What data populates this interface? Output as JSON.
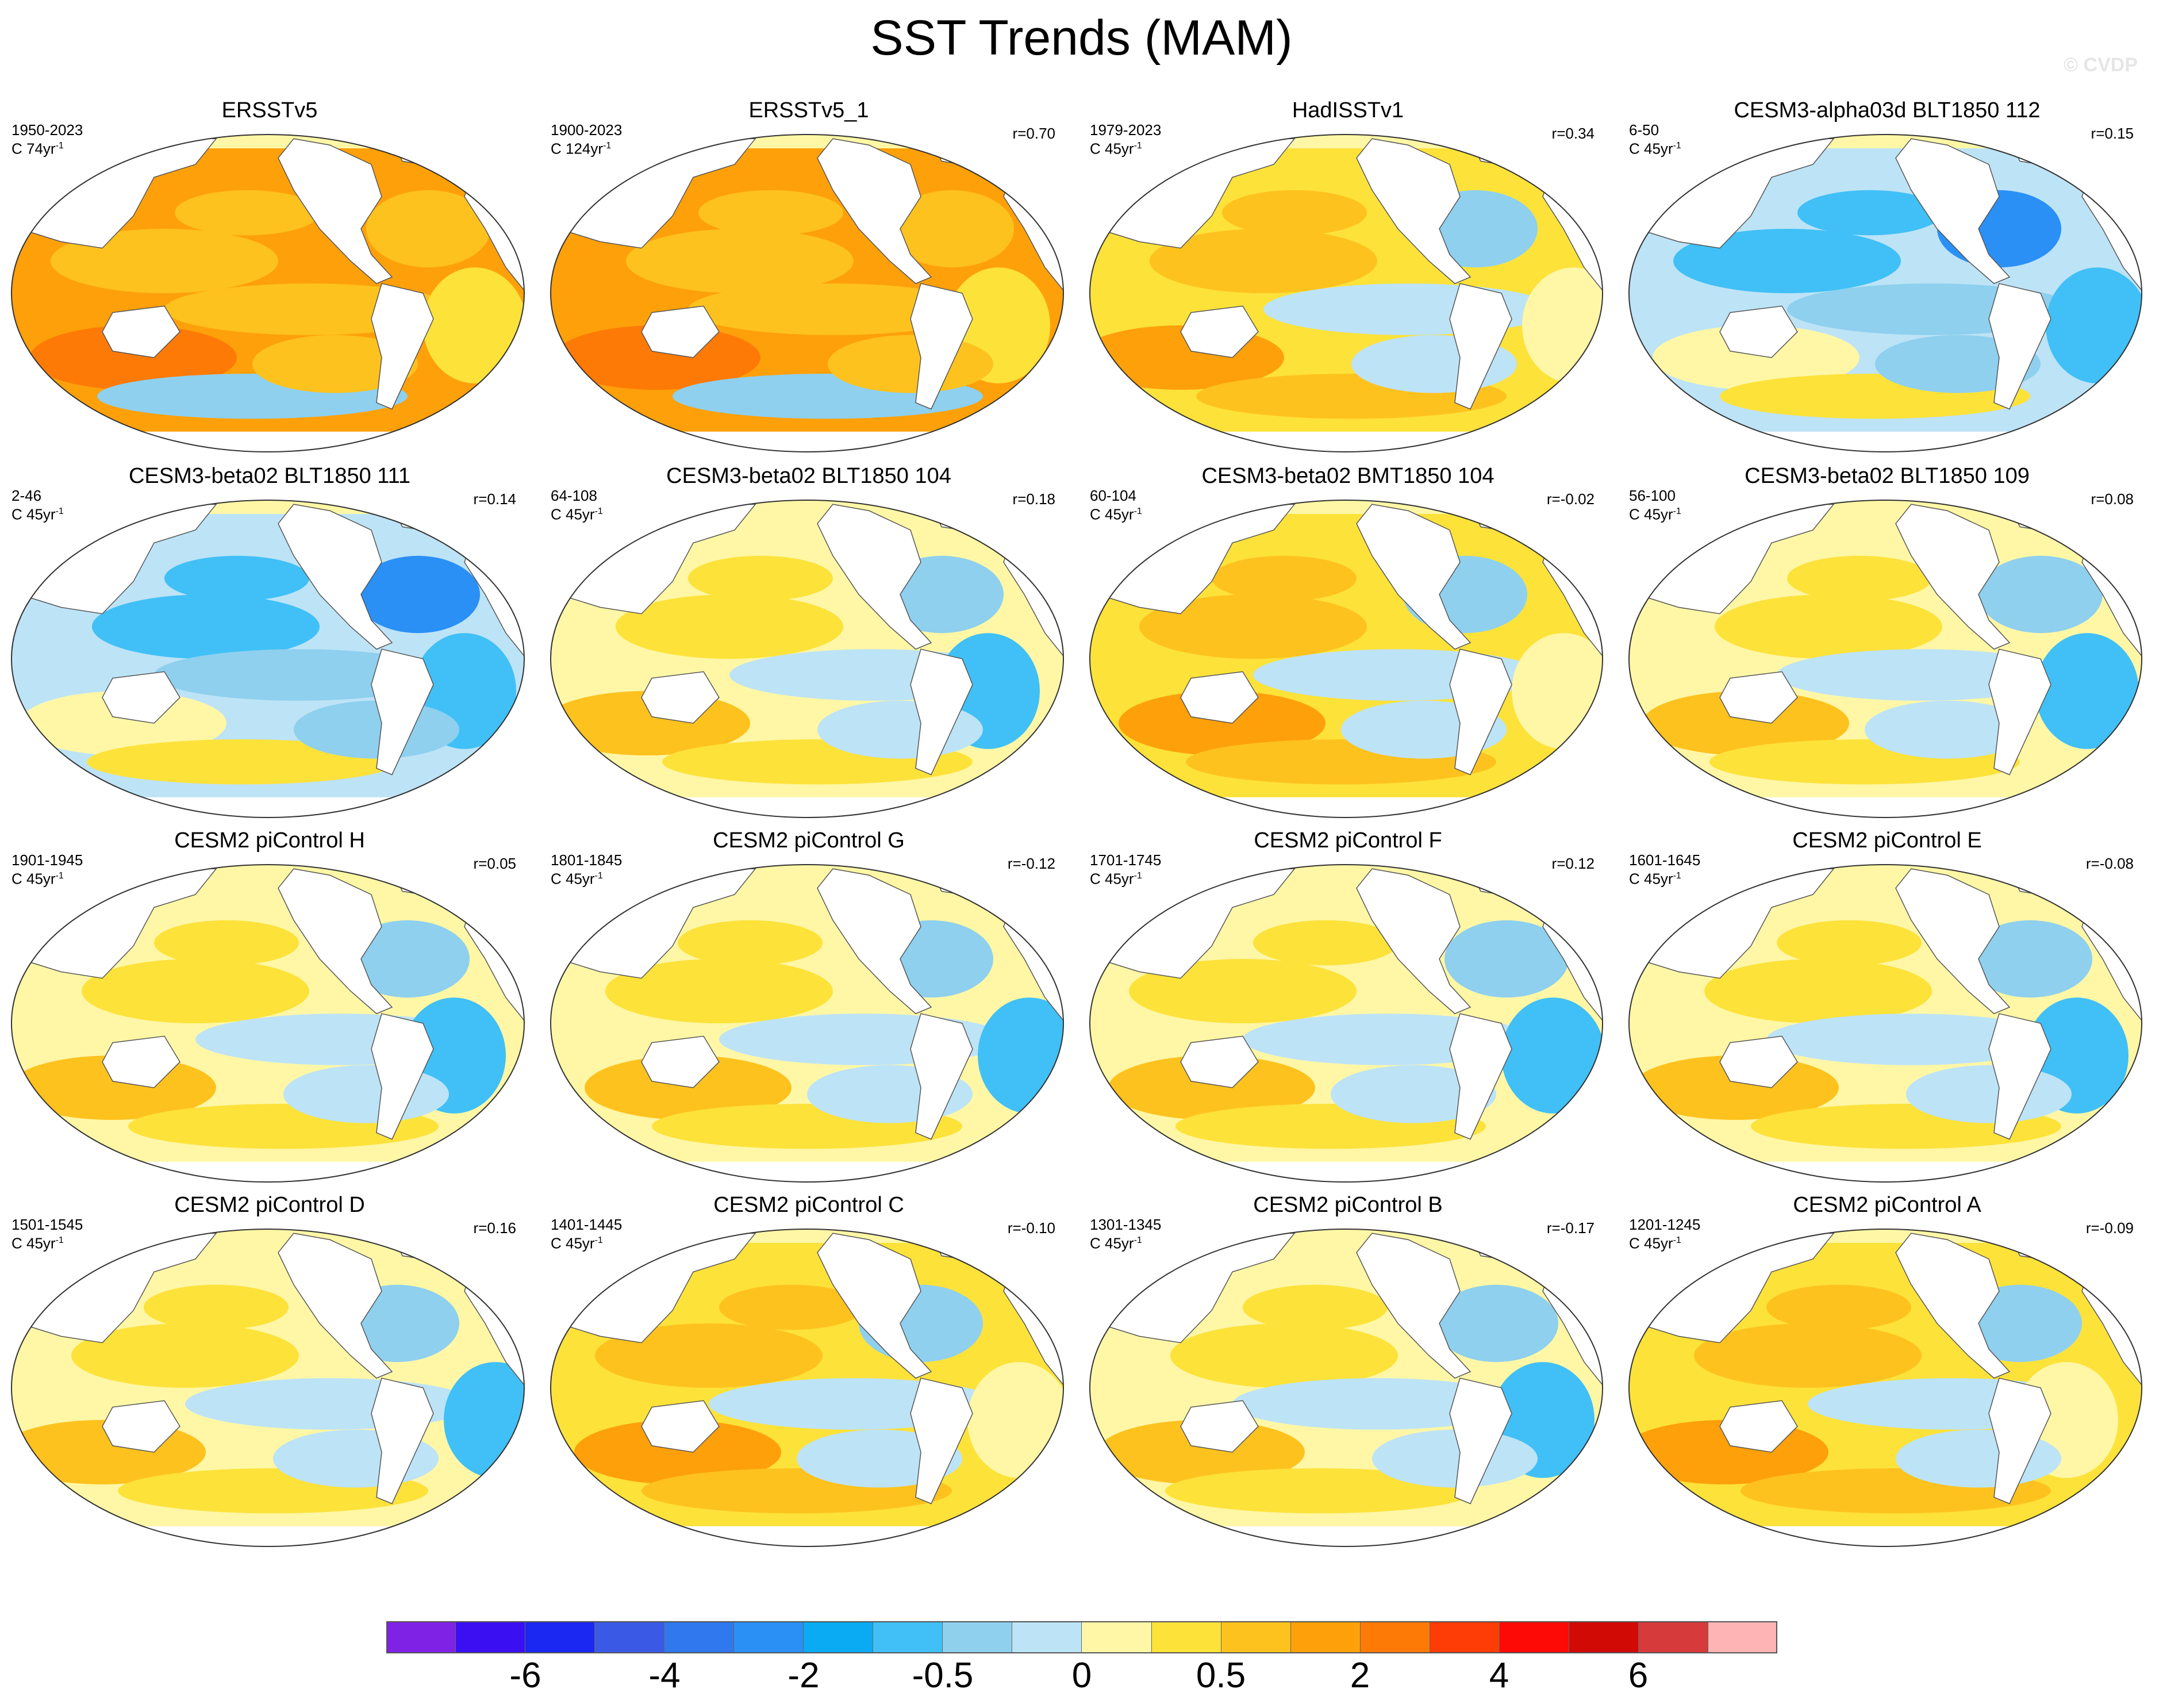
{
  "title": "SST Trends (MAM)",
  "copyright": "© CVDP",
  "panels": [
    {
      "title": "ERSSTv5",
      "period": "1950-2023",
      "units_base": "C 74yr",
      "units_exp": "-1",
      "corr": "",
      "pattern": "warm-strong"
    },
    {
      "title": "ERSSTv5_1",
      "period": "1900-2023",
      "units_base": "C 124yr",
      "units_exp": "-1",
      "corr": "r=0.70",
      "pattern": "warm-strong"
    },
    {
      "title": "HadISSTv1",
      "period": "1979-2023",
      "units_base": "C 45yr",
      "units_exp": "-1",
      "corr": "r=0.34",
      "pattern": "warm-mixed"
    },
    {
      "title": "CESM3-alpha03d BLT1850 112",
      "period": "6-50",
      "units_base": "C 45yr",
      "units_exp": "-1",
      "corr": "r=0.15",
      "pattern": "cool"
    },
    {
      "title": "CESM3-beta02 BLT1850 111",
      "period": "2-46",
      "units_base": "C 45yr",
      "units_exp": "-1",
      "corr": "r=0.14",
      "pattern": "cool"
    },
    {
      "title": "CESM3-beta02 BLT1850 104",
      "period": "64-108",
      "units_base": "C 45yr",
      "units_exp": "-1",
      "corr": "r=0.18",
      "pattern": "mixed"
    },
    {
      "title": "CESM3-beta02 BMT1850 104",
      "period": "60-104",
      "units_base": "C 45yr",
      "units_exp": "-1",
      "corr": "r=-0.02",
      "pattern": "warm-mixed"
    },
    {
      "title": "CESM3-beta02 BLT1850 109",
      "period": "56-100",
      "units_base": "C 45yr",
      "units_exp": "-1",
      "corr": "r=0.08",
      "pattern": "mixed"
    },
    {
      "title": "CESM2 piControl H",
      "period": "1901-1945",
      "units_base": "C 45yr",
      "units_exp": "-1",
      "corr": "r=0.05",
      "pattern": "mixed"
    },
    {
      "title": "CESM2 piControl G",
      "period": "1801-1845",
      "units_base": "C 45yr",
      "units_exp": "-1",
      "corr": "r=-0.12",
      "pattern": "mixed"
    },
    {
      "title": "CESM2 piControl F",
      "period": "1701-1745",
      "units_base": "C 45yr",
      "units_exp": "-1",
      "corr": "r=0.12",
      "pattern": "mixed"
    },
    {
      "title": "CESM2 piControl E",
      "period": "1601-1645",
      "units_base": "C 45yr",
      "units_exp": "-1",
      "corr": "r=-0.08",
      "pattern": "mixed"
    },
    {
      "title": "CESM2 piControl D",
      "period": "1501-1545",
      "units_base": "C 45yr",
      "units_exp": "-1",
      "corr": "r=0.16",
      "pattern": "mixed"
    },
    {
      "title": "CESM2 piControl C",
      "period": "1401-1445",
      "units_base": "C 45yr",
      "units_exp": "-1",
      "corr": "r=-0.10",
      "pattern": "warm-mixed"
    },
    {
      "title": "CESM2 piControl B",
      "period": "1301-1345",
      "units_base": "C 45yr",
      "units_exp": "-1",
      "corr": "r=-0.17",
      "pattern": "mixed"
    },
    {
      "title": "CESM2 piControl A",
      "period": "1201-1245",
      "units_base": "C 45yr",
      "units_exp": "-1",
      "corr": "r=-0.09",
      "pattern": "warm-mixed"
    }
  ],
  "colorbar": {
    "colors": [
      "#8021e6",
      "#3a10f2",
      "#1a28f2",
      "#3a5ae6",
      "#2f78ee",
      "#2a90f6",
      "#0aabf2",
      "#40c0f6",
      "#8ed0ee",
      "#bde3f6",
      "#fff7a6",
      "#fde23a",
      "#fec21e",
      "#fea00a",
      "#fe7a06",
      "#fe3c06",
      "#fe0a06",
      "#d20a06",
      "#d63a3a",
      "#feb4b4"
    ],
    "labels": [
      {
        "text": "-6",
        "boundary": 2
      },
      {
        "text": "-4",
        "boundary": 4
      },
      {
        "text": "-2",
        "boundary": 6
      },
      {
        "text": "-0.5",
        "boundary": 8
      },
      {
        "text": "0",
        "boundary": 10
      },
      {
        "text": "0.5",
        "boundary": 12
      },
      {
        "text": "2",
        "boundary": 14
      },
      {
        "text": "4",
        "boundary": 16
      },
      {
        "text": "6",
        "boundary": 18
      }
    ]
  }
}
